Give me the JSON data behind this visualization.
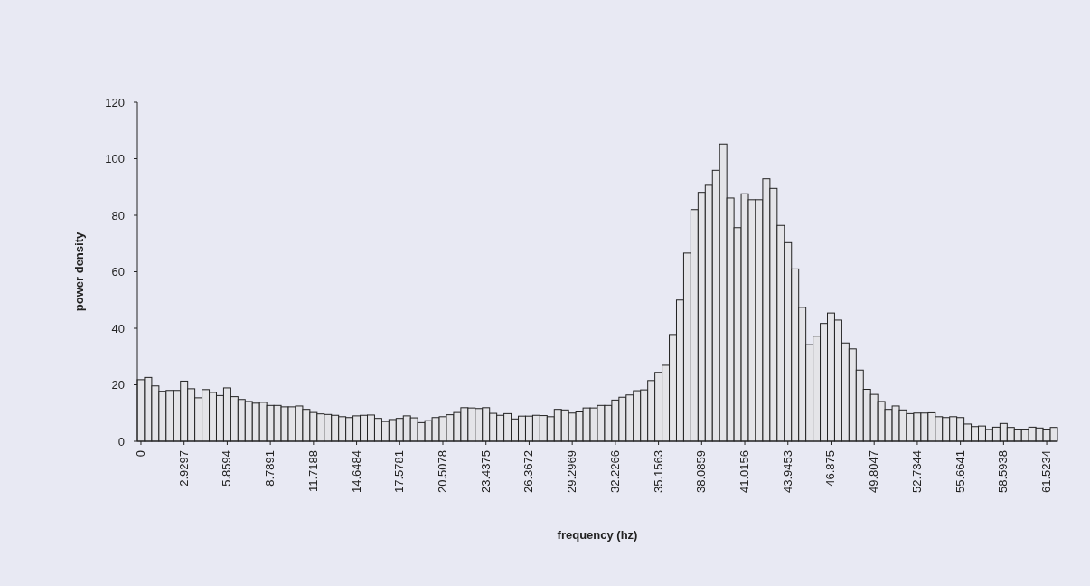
{
  "chart_data": {
    "type": "bar",
    "xlabel": "frequency (hz)",
    "ylabel": "power density",
    "categories": [
      "0",
      null,
      null,
      null,
      null,
      null,
      "2.9297",
      null,
      null,
      null,
      null,
      null,
      "5.8594",
      null,
      null,
      null,
      null,
      null,
      "8.7891",
      null,
      null,
      null,
      null,
      null,
      "11.7188",
      null,
      null,
      null,
      null,
      null,
      "14.6484",
      null,
      null,
      null,
      null,
      null,
      "17.5781",
      null,
      null,
      null,
      null,
      null,
      "20.5078",
      null,
      null,
      null,
      null,
      null,
      "23.4375",
      null,
      null,
      null,
      null,
      null,
      "26.3672",
      null,
      null,
      null,
      null,
      null,
      "29.2969",
      null,
      null,
      null,
      null,
      null,
      "32.2266",
      null,
      null,
      null,
      null,
      null,
      "35.1563",
      null,
      null,
      null,
      null,
      null,
      "38.0859",
      null,
      null,
      null,
      null,
      null,
      "41.0156",
      null,
      null,
      null,
      null,
      null,
      "43.9453",
      null,
      null,
      null,
      null,
      null,
      "46.875",
      null,
      null,
      null,
      null,
      null,
      "49.8047",
      null,
      null,
      null,
      null,
      null,
      "52.7344",
      null,
      null,
      null,
      null,
      null,
      "55.6641",
      null,
      null,
      null,
      null,
      null,
      "58.5938",
      null,
      null,
      null,
      null,
      null,
      "61.5234",
      null
    ],
    "values": [
      21.8,
      22.6,
      19.6,
      17.7,
      18,
      18,
      21.3,
      18.6,
      15.4,
      18.3,
      17.3,
      16.2,
      18.9,
      15.8,
      14.8,
      14.1,
      13.5,
      13.8,
      12.7,
      12.7,
      12.2,
      12.2,
      12.5,
      11.3,
      10.2,
      9.7,
      9.5,
      9.2,
      8.7,
      8.4,
      9,
      9.2,
      9.3,
      8.1,
      7,
      7.7,
      8.1,
      9,
      8.3,
      6.6,
      7.3,
      8.4,
      8.7,
      9.4,
      10.2,
      11.9,
      11.8,
      11.6,
      11.9,
      9.9,
      9.2,
      9.8,
      7.9,
      8.9,
      8.9,
      9.2,
      9.1,
      8.7,
      11.3,
      11.1,
      10,
      10.4,
      11.8,
      11.8,
      12.7,
      12.7,
      14.6,
      15.6,
      16.4,
      17.9,
      18.2,
      21.5,
      24.4,
      26.9,
      37.8,
      50,
      66.6,
      82,
      88.1,
      90.6,
      95.9,
      105.2,
      86.1,
      75.6,
      87.6,
      85.5,
      85.5,
      92.9,
      89.5,
      76.4,
      70.3,
      61,
      47.4,
      34.2,
      37.2,
      41.7,
      45.4,
      42.9,
      34.8,
      32.7,
      25.2,
      18.4,
      16.6,
      14.1,
      11.3,
      12.5,
      11.1,
      9.8,
      10,
      10,
      10.1,
      8.7,
      8.4,
      8.7,
      8.4,
      6.1,
      5.2,
      5.4,
      4.2,
      5,
      6.3,
      4.9,
      4.3,
      4.3,
      5,
      4.7,
      4.3,
      4.9
    ],
    "color": "#e4e4e8",
    "ylim": [
      0,
      120
    ],
    "yticks": [
      0,
      20,
      40,
      60,
      80,
      100,
      120
    ],
    "grid": false
  }
}
